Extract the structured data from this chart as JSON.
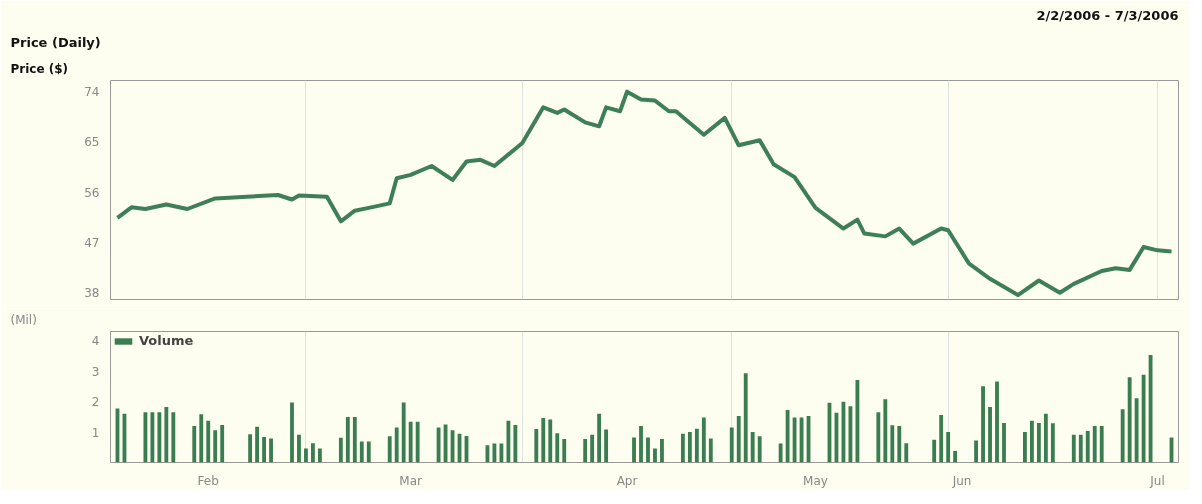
{
  "chart_data": [
    {
      "type": "line",
      "title": "Price  (Daily)",
      "subtitle": "2/2/2006 - 7/3/2006",
      "ylabel": "Price ($)",
      "x": [
        "2006-02-02",
        "2006-02-04",
        "2006-02-06",
        "2006-02-09",
        "2006-02-12",
        "2006-02-16",
        "2006-02-25",
        "2006-02-27",
        "2006-02-28",
        "2006-03-04",
        "2006-03-06",
        "2006-03-08",
        "2006-03-10",
        "2006-03-13",
        "2006-03-14",
        "2006-03-16",
        "2006-03-19",
        "2006-03-22",
        "2006-03-24",
        "2006-03-26",
        "2006-03-28",
        "2006-04-01",
        "2006-04-04",
        "2006-04-06",
        "2006-04-07",
        "2006-04-10",
        "2006-04-12",
        "2006-04-13",
        "2006-04-15",
        "2006-04-16",
        "2006-04-18",
        "2006-04-20",
        "2006-04-22",
        "2006-04-23",
        "2006-04-27",
        "2006-04-30",
        "2006-05-02",
        "2006-05-05",
        "2006-05-07",
        "2006-05-10",
        "2006-05-13",
        "2006-05-17",
        "2006-05-19",
        "2006-05-20",
        "2006-05-23",
        "2006-05-25",
        "2006-05-27",
        "2006-05-31",
        "2006-06-01",
        "2006-06-04",
        "2006-06-07",
        "2006-06-11",
        "2006-06-14",
        "2006-06-17",
        "2006-06-19",
        "2006-06-23",
        "2006-06-25",
        "2006-06-27",
        "2006-06-29",
        "2006-07-01",
        "2006-07-03"
      ],
      "series": [
        {
          "color": "#3f7f58",
          "values": [
            51.4,
            53.3,
            53.0,
            53.8,
            53.0,
            54.9,
            55.5,
            54.7,
            55.4,
            55.2,
            50.8,
            52.7,
            53.2,
            54.0,
            58.5,
            59.1,
            60.7,
            58.2,
            61.5,
            61.8,
            60.7,
            64.8,
            71.2,
            70.2,
            70.8,
            68.5,
            67.8,
            71.2,
            70.5,
            74.0,
            72.6,
            72.4,
            70.5,
            70.5,
            66.3,
            69.3,
            64.4,
            65.3,
            61.0,
            58.7,
            53.2,
            49.5,
            51.1,
            48.6,
            48.1,
            49.5,
            46.8,
            49.5,
            49.2,
            43.2,
            40.5,
            37.6,
            40.2,
            38.0,
            39.6,
            41.9,
            42.4,
            42.1,
            46.2,
            45.6,
            45.4
          ]
        }
      ],
      "xlim": [
        "2006-02-01",
        "2006-07-04"
      ],
      "xticks": [
        {
          "value": "2006-03-01",
          "label": null
        },
        {
          "value": "2006-04-01",
          "label": null
        },
        {
          "value": "2006-05-01",
          "label": null
        },
        {
          "value": "2006-06-01",
          "label": null
        },
        {
          "value": "2006-07-01",
          "label": null
        }
      ],
      "ylim": [
        36.8,
        76
      ],
      "yticks": [
        38,
        47,
        56,
        65,
        74
      ],
      "grid": "x",
      "tick_labels": "y",
      "line_style": "solid"
    },
    {
      "type": "bar",
      "ylabel": "(Mil)",
      "legend": "top left",
      "x": [
        "2006-02-02",
        "2006-02-03",
        "2006-02-06",
        "2006-02-07",
        "2006-02-08",
        "2006-02-09",
        "2006-02-10",
        "2006-02-13",
        "2006-02-14",
        "2006-02-15",
        "2006-02-16",
        "2006-02-17",
        "2006-02-21",
        "2006-02-22",
        "2006-02-23",
        "2006-02-24",
        "2006-02-27",
        "2006-02-28",
        "2006-03-01",
        "2006-03-02",
        "2006-03-03",
        "2006-03-06",
        "2006-03-07",
        "2006-03-08",
        "2006-03-09",
        "2006-03-10",
        "2006-03-13",
        "2006-03-14",
        "2006-03-15",
        "2006-03-16",
        "2006-03-17",
        "2006-03-20",
        "2006-03-21",
        "2006-03-22",
        "2006-03-23",
        "2006-03-24",
        "2006-03-27",
        "2006-03-28",
        "2006-03-29",
        "2006-03-30",
        "2006-03-31",
        "2006-04-03",
        "2006-04-04",
        "2006-04-05",
        "2006-04-06",
        "2006-04-07",
        "2006-04-10",
        "2006-04-11",
        "2006-04-12",
        "2006-04-13",
        "2006-04-17",
        "2006-04-18",
        "2006-04-19",
        "2006-04-20",
        "2006-04-21",
        "2006-04-24",
        "2006-04-25",
        "2006-04-26",
        "2006-04-27",
        "2006-04-28",
        "2006-05-01",
        "2006-05-02",
        "2006-05-03",
        "2006-05-04",
        "2006-05-05",
        "2006-05-08",
        "2006-05-09",
        "2006-05-10",
        "2006-05-11",
        "2006-05-12",
        "2006-05-15",
        "2006-05-16",
        "2006-05-17",
        "2006-05-18",
        "2006-05-19",
        "2006-05-22",
        "2006-05-23",
        "2006-05-24",
        "2006-05-25",
        "2006-05-26",
        "2006-05-30",
        "2006-05-31",
        "2006-06-01",
        "2006-06-02",
        "2006-06-05",
        "2006-06-06",
        "2006-06-07",
        "2006-06-08",
        "2006-06-09",
        "2006-06-12",
        "2006-06-13",
        "2006-06-14",
        "2006-06-15",
        "2006-06-16",
        "2006-06-19",
        "2006-06-20",
        "2006-06-21",
        "2006-06-22",
        "2006-06-23",
        "2006-06-26",
        "2006-06-27",
        "2006-06-28",
        "2006-06-29",
        "2006-06-30",
        "2006-07-03"
      ],
      "series": [
        {
          "name": "Volume",
          "color": "#3a7d50",
          "values": [
            1.77,
            1.6,
            1.65,
            1.65,
            1.65,
            1.82,
            1.65,
            1.2,
            1.58,
            1.37,
            1.06,
            1.23,
            0.93,
            1.17,
            0.84,
            0.79,
            1.97,
            0.91,
            0.46,
            0.63,
            0.46,
            0.81,
            1.49,
            1.49,
            0.69,
            0.69,
            0.86,
            1.15,
            1.97,
            1.34,
            1.34,
            1.15,
            1.25,
            1.06,
            0.94,
            0.87,
            0.57,
            0.62,
            0.62,
            1.37,
            1.23,
            1.1,
            1.46,
            1.41,
            0.96,
            0.77,
            0.77,
            0.91,
            1.6,
            1.08,
            0.82,
            1.2,
            0.82,
            0.46,
            0.77,
            0.94,
            1.0,
            1.11,
            1.48,
            0.79,
            1.15,
            1.53,
            2.93,
            1.0,
            0.86,
            0.62,
            1.72,
            1.48,
            1.48,
            1.53,
            1.96,
            1.63,
            1.99,
            1.85,
            2.71,
            1.65,
            2.08,
            1.22,
            1.2,
            0.63,
            0.75,
            1.56,
            1.0,
            0.38,
            0.72,
            2.5,
            1.82,
            2.66,
            1.3,
            1.0,
            1.37,
            1.3,
            1.6,
            1.29,
            0.91,
            0.91,
            1.03,
            1.2,
            1.2,
            1.75,
            2.8,
            2.11,
            2.88,
            3.53,
            0.82
          ]
        }
      ],
      "xlim": [
        "2006-02-01",
        "2006-07-04"
      ],
      "xticks": [
        {
          "value": "2006-03-01",
          "label": null
        },
        {
          "value": "2006-04-01",
          "label": null
        },
        {
          "value": "2006-05-01",
          "label": null
        },
        {
          "value": "2006-06-01",
          "label": null
        },
        {
          "value": "2006-02-15",
          "label": "Feb"
        },
        {
          "value": "2006-03-16",
          "label": "Mar"
        },
        {
          "value": "2006-04-16",
          "label": "Apr"
        },
        {
          "value": "2006-05-13",
          "label": "May"
        },
        {
          "value": "2006-06-03",
          "label": "Jun"
        },
        {
          "value": "2006-07-01",
          "label": "Jul"
        }
      ],
      "ylim": [
        0,
        4.3
      ],
      "yticks": [
        1,
        2,
        3,
        4
      ],
      "grid": "x"
    }
  ]
}
